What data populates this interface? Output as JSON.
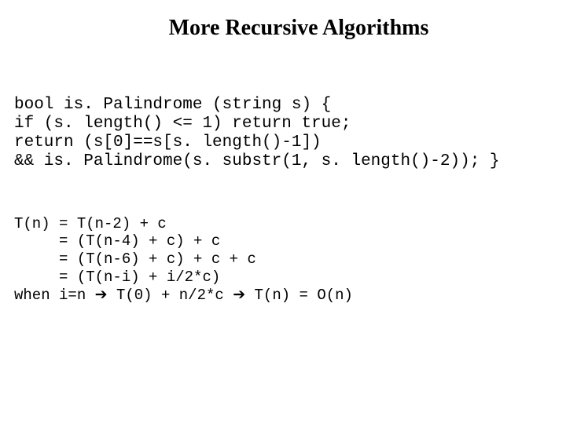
{
  "slide": {
    "title": "More Recursive Algorithms",
    "code": {
      "line1": "bool is. Palindrome (string s) {",
      "line2": "if (s. length() <= 1) return true;",
      "line3": "return (s[0]==s[s. length()-1])",
      "line4": "&& is. Palindrome(s. substr(1, s. length()-2)); }"
    },
    "analysis": {
      "line1": "T(n) = T(n-2) + c",
      "line2": "     = (T(n-4) + c) + c",
      "line3": "     = (T(n-6) + c) + c + c",
      "line4": "     = (T(n-i) + i/2*c)",
      "line5_pre": "when i=n ",
      "line5_mid": " T(0) + n/2*c ",
      "line5_post": " T(n) = O(n)",
      "arrow": "➔"
    }
  },
  "styling": {
    "background_color": "#ffffff",
    "text_color": "#000000",
    "title_fontsize": 28,
    "code_fontsize": 21,
    "analysis_fontsize": 19,
    "title_font": "Times New Roman",
    "code_font": "Courier New"
  }
}
